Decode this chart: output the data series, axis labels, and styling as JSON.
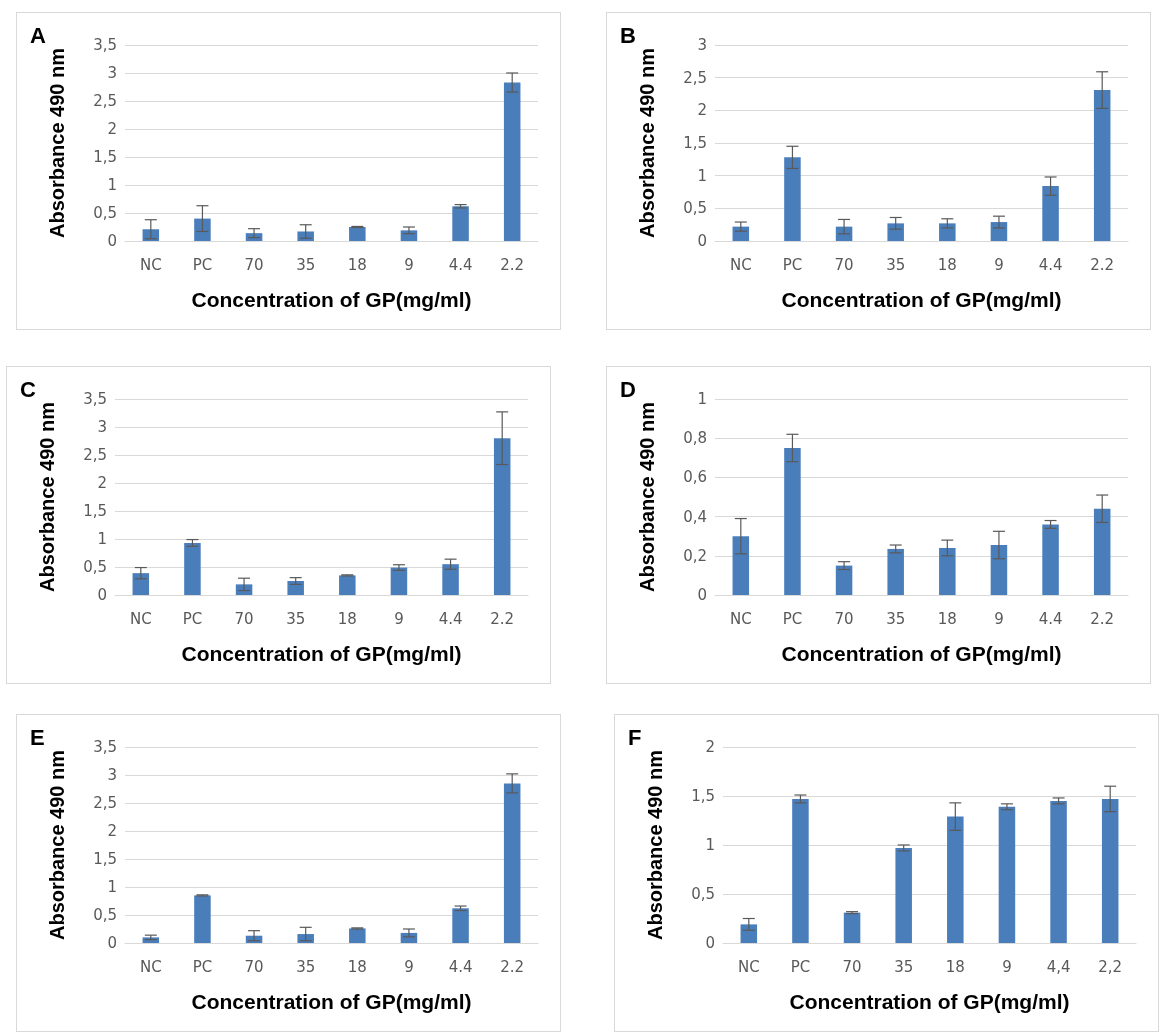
{
  "chart_data": [
    {
      "type": "bar",
      "title": "A",
      "xlabel": "Concentration of GP(mg/ml)",
      "ylabel": "Absorbance 490 nm",
      "color": "#4a7ebb",
      "grid": "y",
      "categories": [
        "NC",
        "PC",
        "70",
        "35",
        "18",
        "9",
        "4.4",
        "2.2"
      ],
      "values": [
        0.21,
        0.4,
        0.14,
        0.17,
        0.25,
        0.19,
        0.62,
        2.83
      ],
      "errors": [
        0.17,
        0.23,
        0.08,
        0.12,
        0.01,
        0.06,
        0.03,
        0.17
      ],
      "ylim": [
        0,
        3.5
      ],
      "yticks": [
        0,
        {
          "value": 0.5,
          "label": "0,5"
        },
        1,
        {
          "value": 1.5,
          "label": "1,5"
        },
        2,
        {
          "value": 2.5,
          "label": "2,5"
        },
        3,
        {
          "value": 3.5,
          "label": "3,5"
        }
      ]
    },
    {
      "type": "bar",
      "title": "B",
      "xlabel": "Concentration of GP(mg/ml)",
      "ylabel": "Absorbance 490 nm",
      "color": "#4a7ebb",
      "grid": "y",
      "categories": [
        "NC",
        "PC",
        "70",
        "35",
        "18",
        "9",
        "4.4",
        "2.2"
      ],
      "values": [
        0.22,
        1.28,
        0.22,
        0.27,
        0.27,
        0.29,
        0.84,
        2.31
      ],
      "errors": [
        0.07,
        0.17,
        0.11,
        0.09,
        0.07,
        0.09,
        0.14,
        0.28
      ],
      "ylim": [
        0,
        3
      ],
      "yticks": [
        0,
        {
          "value": 0.5,
          "label": "0,5"
        },
        1,
        {
          "value": 1.5,
          "label": "1,5"
        },
        2,
        {
          "value": 2.5,
          "label": "2,5"
        },
        3
      ]
    },
    {
      "type": "bar",
      "title": "C",
      "xlabel": "Concentration of GP(mg/ml)",
      "ylabel": "Absorbance 490 nm",
      "color": "#4a7ebb",
      "grid": "y",
      "categories": [
        "NC",
        "PC",
        "70",
        "35",
        "18",
        "9",
        "4.4",
        "2.2"
      ],
      "values": [
        0.39,
        0.93,
        0.19,
        0.25,
        0.35,
        0.49,
        0.55,
        2.8
      ],
      "errors": [
        0.1,
        0.06,
        0.11,
        0.06,
        0.01,
        0.05,
        0.09,
        0.47
      ],
      "ylim": [
        0,
        3.5
      ],
      "yticks": [
        0,
        {
          "value": 0.5,
          "label": "0,5"
        },
        1,
        {
          "value": 1.5,
          "label": "1,5"
        },
        2,
        {
          "value": 2.5,
          "label": "2,5"
        },
        3,
        {
          "value": 3.5,
          "label": "3,5"
        }
      ]
    },
    {
      "type": "bar",
      "title": "D",
      "xlabel": "Concentration of GP(mg/ml)",
      "ylabel": "Absorbance 490 nm",
      "color": "#4a7ebb",
      "grid": "y",
      "categories": [
        "NC",
        "PC",
        "70",
        "35",
        "18",
        "9",
        "4.4",
        "2.2"
      ],
      "values": [
        0.3,
        0.75,
        0.15,
        0.235,
        0.24,
        0.255,
        0.36,
        0.44
      ],
      "errors": [
        0.09,
        0.07,
        0.02,
        0.02,
        0.04,
        0.07,
        0.02,
        0.07
      ],
      "ylim": [
        0,
        1
      ],
      "yticks": [
        0,
        {
          "value": 0.2,
          "label": "0,2"
        },
        {
          "value": 0.4,
          "label": "0,4"
        },
        {
          "value": 0.6,
          "label": "0,6"
        },
        {
          "value": 0.8,
          "label": "0,8"
        },
        1
      ]
    },
    {
      "type": "bar",
      "title": "E",
      "xlabel": "Concentration of GP(mg/ml)",
      "ylabel": "Absorbance 490 nm",
      "color": "#4a7ebb",
      "grid": "y",
      "categories": [
        "NC",
        "PC",
        "70",
        "35",
        "18",
        "9",
        "4.4",
        "2.2"
      ],
      "values": [
        0.1,
        0.85,
        0.13,
        0.16,
        0.26,
        0.18,
        0.62,
        2.85
      ],
      "errors": [
        0.04,
        0.01,
        0.09,
        0.12,
        0.01,
        0.07,
        0.04,
        0.17
      ],
      "ylim": [
        0,
        3.5
      ],
      "yticks": [
        0,
        {
          "value": 0.5,
          "label": "0,5"
        },
        1,
        {
          "value": 1.5,
          "label": "1,5"
        },
        2,
        {
          "value": 2.5,
          "label": "2,5"
        },
        3,
        {
          "value": 3.5,
          "label": "3,5"
        }
      ]
    },
    {
      "type": "bar",
      "title": "F",
      "xlabel": "Concentration of GP(mg/ml)",
      "ylabel": "Absorbance 490 nm",
      "color": "#4a7ebb",
      "grid": "y",
      "categories": [
        "NC",
        "PC",
        "70",
        "35",
        "18",
        "9",
        "4,4",
        "2,2"
      ],
      "values": [
        0.19,
        1.47,
        0.31,
        0.97,
        1.29,
        1.39,
        1.45,
        1.47
      ],
      "errors": [
        0.06,
        0.04,
        0.01,
        0.03,
        0.14,
        0.03,
        0.03,
        0.13
      ],
      "ylim": [
        0,
        2
      ],
      "yticks": [
        0,
        {
          "value": 0.5,
          "label": "0,5"
        },
        1,
        {
          "value": 1.5,
          "label": "1,5"
        },
        2
      ]
    }
  ]
}
